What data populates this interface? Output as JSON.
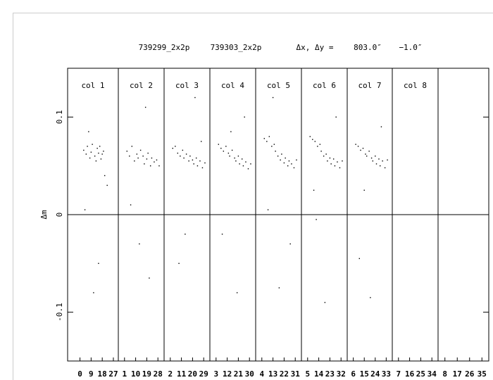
{
  "chart_data": {
    "type": "scatter",
    "title_parts": [
      "739299_2x2p",
      "739303_2x2p",
      "Δx, Δy =",
      "803.0″",
      "−1.0″"
    ],
    "y_label": "Δm",
    "ylim": [
      -0.15,
      0.15
    ],
    "yticks": [
      -0.1,
      0,
      0.1
    ],
    "zero_line": true,
    "color": "#000000",
    "panels": [
      {
        "label": "col 1",
        "xlim": [
          -10,
          31
        ],
        "xticks": [
          0,
          9,
          18,
          27
        ],
        "x": [
          3,
          5,
          6,
          8,
          9,
          10,
          12,
          13,
          14,
          15,
          16,
          17,
          18,
          19,
          20,
          22,
          4,
          11,
          15,
          7
        ],
        "y": [
          0.066,
          0.062,
          0.07,
          0.058,
          0.064,
          0.072,
          0.06,
          0.055,
          0.068,
          0.063,
          0.07,
          0.057,
          0.062,
          0.065,
          0.04,
          0.03,
          0.005,
          -0.08,
          -0.05,
          0.085
        ]
      },
      {
        "label": "col 2",
        "xlim": [
          -4,
          33
        ],
        "xticks": [
          1,
          10,
          19,
          28
        ],
        "x": [
          3,
          5,
          7,
          9,
          11,
          12,
          14,
          16,
          17,
          19,
          20,
          22,
          23,
          25,
          27,
          29,
          13,
          21,
          6,
          18
        ],
        "y": [
          0.065,
          0.06,
          0.07,
          0.055,
          0.062,
          0.058,
          0.066,
          0.06,
          0.052,
          0.057,
          0.063,
          0.05,
          0.058,
          0.054,
          0.056,
          0.05,
          -0.03,
          -0.065,
          0.01,
          0.11
        ]
      },
      {
        "label": "col 3",
        "xlim": [
          -3,
          34
        ],
        "xticks": [
          2,
          11,
          20,
          29
        ],
        "x": [
          4,
          6,
          8,
          10,
          12,
          13,
          15,
          17,
          18,
          20,
          21,
          23,
          24,
          26,
          28,
          30,
          9,
          22,
          14,
          27
        ],
        "y": [
          0.068,
          0.07,
          0.063,
          0.06,
          0.066,
          0.058,
          0.062,
          0.055,
          0.06,
          0.056,
          0.052,
          0.058,
          0.05,
          0.055,
          0.048,
          0.053,
          -0.05,
          0.12,
          -0.02,
          0.075
        ]
      },
      {
        "label": "col 4",
        "xlim": [
          -2,
          35
        ],
        "xticks": [
          3,
          12,
          21,
          30
        ],
        "x": [
          5,
          7,
          9,
          11,
          13,
          14,
          16,
          18,
          19,
          21,
          22,
          24,
          25,
          27,
          29,
          31,
          8,
          20,
          26,
          15
        ],
        "y": [
          0.072,
          0.068,
          0.065,
          0.07,
          0.063,
          0.06,
          0.066,
          0.058,
          0.055,
          0.06,
          0.052,
          0.057,
          0.05,
          0.054,
          0.047,
          0.052,
          -0.02,
          -0.08,
          0.1,
          0.085
        ]
      },
      {
        "label": "col 5",
        "xlim": [
          -1,
          36
        ],
        "xticks": [
          4,
          13,
          22,
          31
        ],
        "x": [
          6,
          8,
          10,
          12,
          14,
          15,
          17,
          19,
          20,
          22,
          23,
          25,
          26,
          28,
          30,
          32,
          9,
          18,
          27,
          13
        ],
        "y": [
          0.078,
          0.075,
          0.08,
          0.07,
          0.072,
          0.065,
          0.06,
          0.056,
          0.062,
          0.053,
          0.058,
          0.05,
          0.055,
          0.052,
          0.048,
          0.056,
          0.005,
          -0.075,
          -0.03,
          0.12
        ]
      },
      {
        "label": "col 6",
        "xlim": [
          0,
          37
        ],
        "xticks": [
          5,
          14,
          23,
          32
        ],
        "x": [
          7,
          9,
          11,
          13,
          15,
          16,
          18,
          20,
          21,
          23,
          24,
          26,
          27,
          29,
          31,
          33,
          12,
          19,
          28,
          10
        ],
        "y": [
          0.08,
          0.077,
          0.075,
          0.07,
          0.072,
          0.065,
          0.06,
          0.062,
          0.055,
          0.058,
          0.052,
          0.057,
          0.05,
          0.054,
          0.048,
          0.055,
          -0.005,
          -0.09,
          0.1,
          0.025
        ]
      },
      {
        "label": "col 7",
        "xlim": [
          1,
          38
        ],
        "xticks": [
          6,
          15,
          24,
          33
        ],
        "x": [
          8,
          10,
          12,
          14,
          16,
          17,
          19,
          21,
          22,
          24,
          25,
          27,
          28,
          30,
          32,
          34,
          11,
          20,
          29,
          15
        ],
        "y": [
          0.072,
          0.07,
          0.066,
          0.068,
          0.062,
          0.06,
          0.065,
          0.058,
          0.055,
          0.06,
          0.052,
          0.057,
          0.05,
          0.055,
          0.048,
          0.056,
          -0.045,
          -0.085,
          0.09,
          0.025
        ]
      },
      {
        "label": "col 8",
        "xlim": [
          2,
          39
        ],
        "xticks": [
          7,
          16,
          25,
          34
        ],
        "x": [],
        "y": []
      },
      {
        "label": null,
        "xlim": [
          3,
          40
        ],
        "xticks": [
          8,
          17,
          26,
          35
        ],
        "x": [],
        "y": []
      }
    ]
  }
}
